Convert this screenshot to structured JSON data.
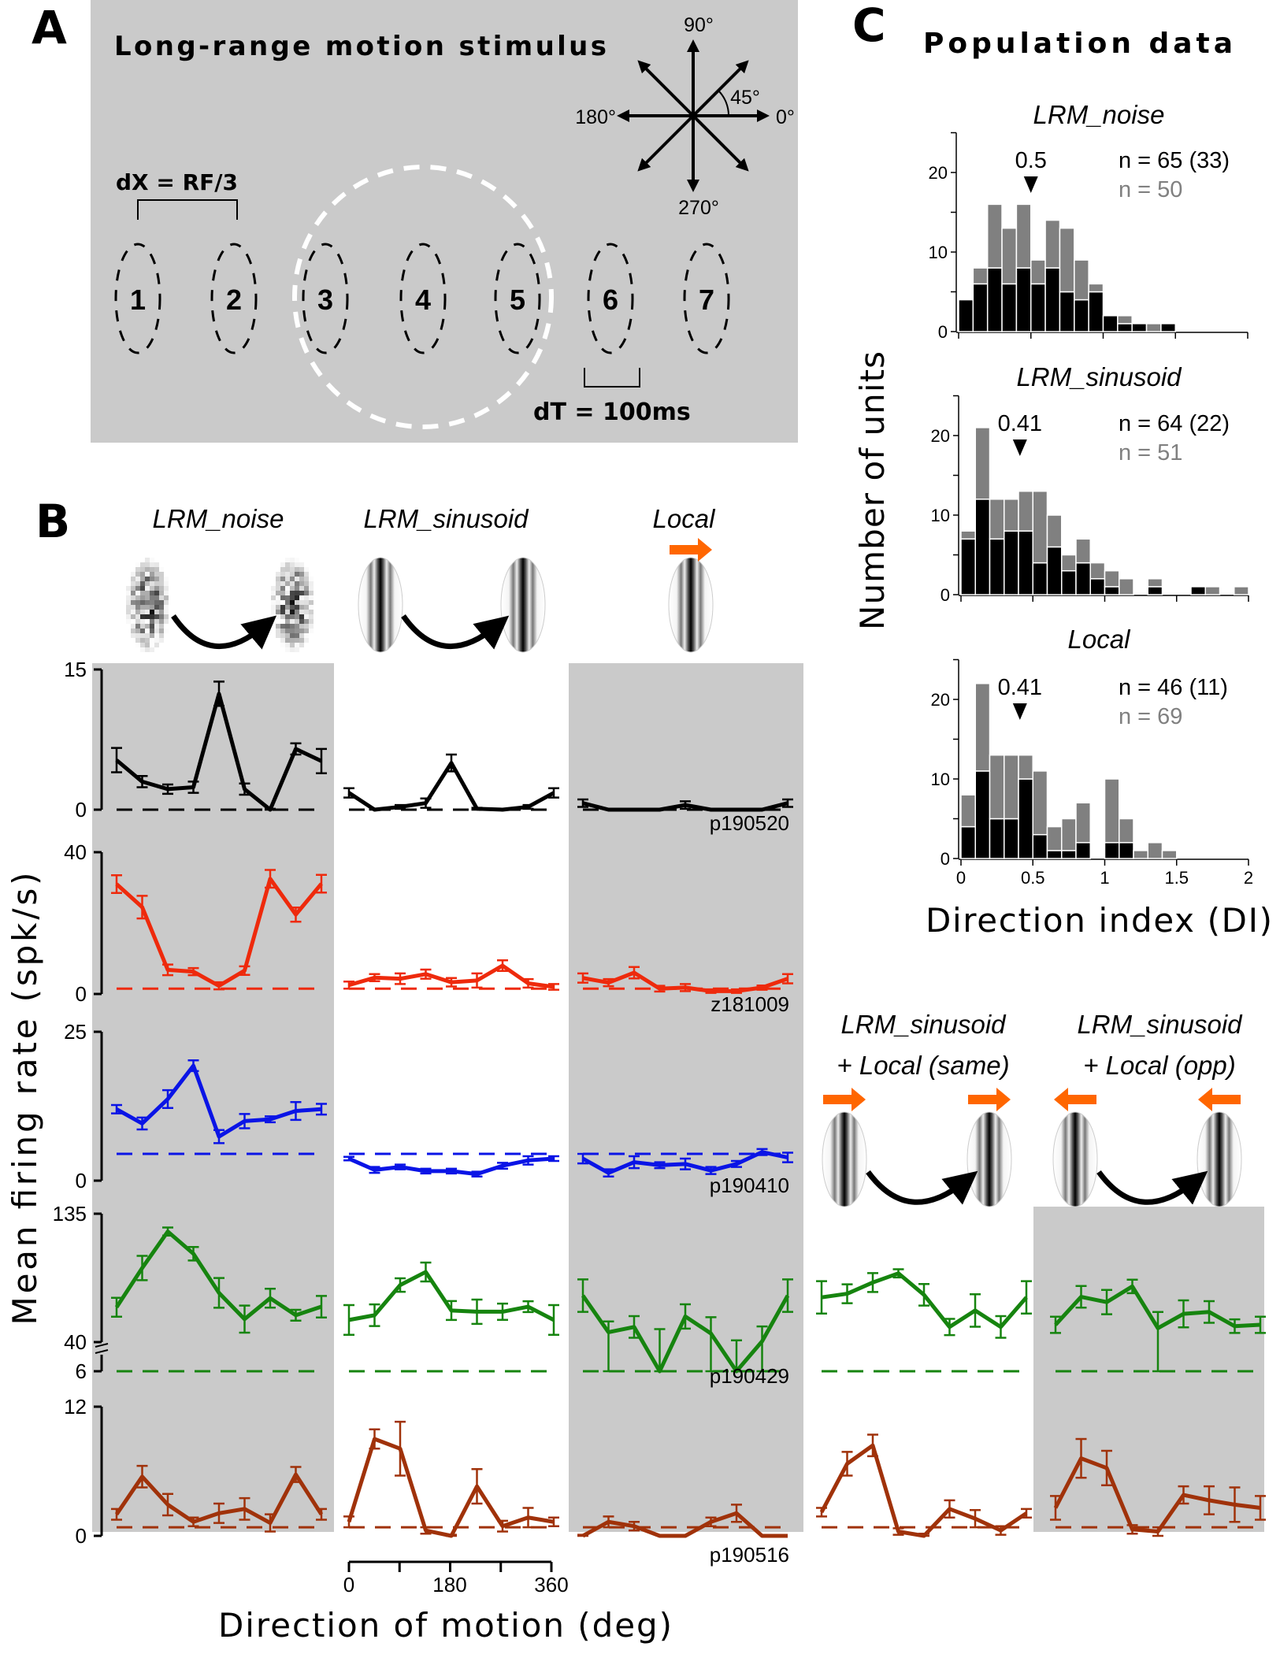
{
  "panel_labels": {
    "a": "A",
    "b": "B",
    "c": "C"
  },
  "panel_a": {
    "title": "Long-range motion stimulus",
    "angles": {
      "up": "90°",
      "diag": "45°",
      "left": "180°",
      "right": "0°",
      "down": "270°"
    },
    "aperture_numbers": [
      "1",
      "2",
      "3",
      "4",
      "5",
      "6",
      "7"
    ],
    "dx_label": "dX = RF/3",
    "dt_label": "dT = 100ms"
  },
  "colors": {
    "panel_bg": "#cacaca",
    "local_arrow": "#ff6600",
    "hist_black": "#000000",
    "hist_gray": "#808080"
  },
  "chart_data": [
    {
      "type": "line",
      "panel": "B",
      "xlabel": "Direction of motion (deg)",
      "ylabel": "Mean firing rate (spk/s)",
      "x": [
        0,
        45,
        90,
        135,
        180,
        225,
        270,
        315,
        360
      ],
      "x_tick_labels": [
        "0",
        "180",
        "360"
      ],
      "xlim": [
        0,
        360
      ],
      "column_titles": [
        [
          "LRM_noise"
        ],
        [
          "LRM_sinusoid"
        ],
        [
          "Local"
        ],
        [
          "LRM_sinusoid",
          "+ Local (same)"
        ],
        [
          "LRM_sinusoid",
          "+ Local (opp)"
        ]
      ],
      "shaded_columns": [
        0,
        2,
        4
      ],
      "rows": [
        {
          "cell": "p190520",
          "color": "#000000",
          "ylim": [
            0,
            15
          ],
          "y_tick_labels": [
            "15",
            "0"
          ],
          "baseline": 0,
          "series": [
            {
              "column": 0,
              "values": [
                5.3,
                3.0,
                2.2,
                2.4,
                12.4,
                2.2,
                0,
                6.5,
                5.2
              ],
              "errors": [
                1.3,
                0.6,
                0.5,
                0.6,
                1.3,
                0.6,
                0.1,
                0.6,
                1.3
              ]
            },
            {
              "column": 1,
              "values": [
                1.8,
                0,
                0.3,
                0.7,
                5.0,
                0.1,
                0,
                0.3,
                1.8
              ],
              "errors": [
                0.5,
                0.1,
                0.2,
                0.5,
                0.9,
                0.1,
                0.1,
                0.2,
                0.5
              ]
            },
            {
              "column": 2,
              "values": [
                0.7,
                0,
                0,
                0,
                0.5,
                0,
                0,
                0,
                0.7
              ],
              "errors": [
                0.4,
                0,
                0,
                0,
                0.4,
                0,
                0,
                0,
                0.4
              ]
            }
          ]
        },
        {
          "cell": "z181009",
          "color": "#ee2a0c",
          "ylim": [
            0,
            40
          ],
          "y_tick_labels": [
            "40",
            "0"
          ],
          "baseline": 1.5,
          "series": [
            {
              "column": 0,
              "values": [
                31.0,
                24.5,
                6.8,
                6.3,
                2.3,
                6.6,
                32.5,
                22.4,
                31.1
              ],
              "errors": [
                2.5,
                3.2,
                1.5,
                1.0,
                1.0,
                1.2,
                2.5,
                2.0,
                2.5
              ]
            },
            {
              "column": 1,
              "values": [
                2.5,
                4.6,
                4.3,
                5.6,
                3.3,
                3.8,
                8.0,
                3.0,
                2.0
              ],
              "errors": [
                1.0,
                1.0,
                1.5,
                1.3,
                1.2,
                2.0,
                1.5,
                1.2,
                0.8
              ]
            },
            {
              "column": 2,
              "values": [
                4.5,
                3.2,
                6.0,
                1.5,
                1.8,
                0.8,
                0.8,
                1.8,
                4.3
              ],
              "errors": [
                1.3,
                1.0,
                1.6,
                0.8,
                1.0,
                0.5,
                0.5,
                0.6,
                1.3
              ]
            }
          ]
        },
        {
          "cell": "p190410",
          "color": "#0a14e6",
          "ylim": [
            0,
            25
          ],
          "y_tick_labels": [
            "25",
            "0"
          ],
          "baseline": 4.5,
          "series": [
            {
              "column": 0,
              "values": [
                12.0,
                9.6,
                13.7,
                19.3,
                7.4,
                10.0,
                10.3,
                11.7,
                12.0
              ],
              "errors": [
                0.7,
                1.0,
                1.5,
                0.9,
                1.1,
                1.2,
                0.5,
                1.5,
                0.9
              ]
            },
            {
              "column": 1,
              "values": [
                3.7,
                1.8,
                2.3,
                1.6,
                1.6,
                1.1,
                2.5,
                3.4,
                3.7
              ],
              "errors": [
                0.3,
                0.5,
                0.4,
                0.4,
                0.4,
                0.4,
                0.5,
                0.7,
                0.4
              ]
            },
            {
              "column": 2,
              "values": [
                3.7,
                1.3,
                3.1,
                2.6,
                2.8,
                1.7,
                2.8,
                4.8,
                3.9
              ],
              "errors": [
                0.8,
                0.6,
                1.0,
                0.5,
                0.9,
                0.6,
                0.5,
                0.5,
                0.8
              ]
            }
          ]
        },
        {
          "cell": "p190429",
          "color": "#16840f",
          "ylim": [
            40,
            135
          ],
          "axis_break_value": 6,
          "y_tick_labels": [
            "135",
            "40",
            "6"
          ],
          "baseline": 6,
          "series": [
            {
              "column": 0,
              "values": [
                65.8,
                94.8,
                121.8,
                105.4,
                76.4,
                57.0,
                72.5,
                59.9,
                66.2
              ],
              "errors": [
                7,
                9,
                3,
                5,
                11,
                10,
                7,
                4,
                8
              ]
            },
            {
              "column": 1,
              "values": [
                56.4,
                59.9,
                82.2,
                91.9,
                63.4,
                62.5,
                62.5,
                66.2,
                56.4
              ],
              "errors": [
                11,
                8,
                5,
                7,
                7,
                9,
                6,
                4,
                11
              ]
            },
            {
              "column": 2,
              "values": [
                74.4,
                47.3,
                51.2,
                39.6,
                59.0,
                46.4,
                36.3,
                40.6,
                74.4
              ],
              "errors": [
                12,
                8,
                8,
                10,
                9,
                12,
                5,
                11,
                12
              ]
            },
            {
              "column": 3,
              "values": [
                73.1,
                75.8,
                84.1,
                90.9,
                75.0,
                51.2,
                63.4,
                51.2,
                73.1
              ],
              "errors": [
                12,
                7,
                7,
                3,
                8,
                6,
                12,
                8,
                12
              ]
            },
            {
              "column": 4,
              "values": [
                52.8,
                73.5,
                69.6,
                81.2,
                50.3,
                60.9,
                62.3,
                51.8,
                52.8
              ],
              "errors": [
                6,
                8,
                9,
                5,
                12,
                10,
                8,
                5,
                6
              ]
            }
          ]
        },
        {
          "cell": "p190516",
          "color": "#a0320a",
          "ylim": [
            0,
            12
          ],
          "y_tick_labels": [
            "12",
            "0"
          ],
          "baseline": 0.8,
          "series": [
            {
              "column": 0,
              "values": [
                2.0,
                5.5,
                2.9,
                1.3,
                2.1,
                2.5,
                1.2,
                5.7,
                2.0
              ],
              "errors": [
                0.5,
                1.0,
                1.0,
                0.4,
                0.9,
                1.0,
                0.8,
                0.7,
                0.5
              ]
            },
            {
              "column": 1,
              "values": [
                1.3,
                9.0,
                8.1,
                0.5,
                0,
                4.6,
                0.9,
                1.7,
                1.3
              ],
              "errors": [
                0.5,
                0.9,
                2.5,
                0.3,
                0.1,
                1.6,
                0.5,
                0.9,
                0.4
              ]
            },
            {
              "column": 2,
              "values": [
                0,
                1.3,
                0.9,
                0,
                0,
                1.3,
                2.1,
                0,
                0
              ],
              "errors": [
                0.1,
                0.5,
                0.4,
                0,
                0,
                0.4,
                0.8,
                0,
                0
              ]
            },
            {
              "column": 3,
              "values": [
                2.2,
                6.7,
                8.4,
                0.4,
                0,
                2.5,
                1.6,
                0.5,
                2.1
              ],
              "errors": [
                0.4,
                1.1,
                1.0,
                0.3,
                0.2,
                0.8,
                0.8,
                0.4,
                0.4
              ]
            },
            {
              "column": 4,
              "values": [
                2.6,
                7.2,
                6.3,
                0.6,
                0.4,
                3.8,
                3.3,
                2.9,
                2.6
              ],
              "errors": [
                1.1,
                1.8,
                1.6,
                0.4,
                0.4,
                0.8,
                1.3,
                1.6,
                1.1
              ]
            }
          ]
        }
      ]
    },
    {
      "type": "bar",
      "stacked": true,
      "panel": "C",
      "title": "Population data",
      "xlabel": "Direction index (DI)",
      "ylabel": "Number of units",
      "xlim": [
        0,
        2
      ],
      "ylim": [
        0,
        25
      ],
      "bin_width": 0.1,
      "x_tick_labels": [
        "0",
        "0.5",
        "1",
        "1.5",
        "2"
      ],
      "y_tick_labels": [
        "0",
        "10",
        "20"
      ],
      "histograms": [
        {
          "title": "LRM_noise",
          "median": 0.5,
          "median_label": "0.5",
          "n_black_label": "n = 65 (33)",
          "n_gray_label": "n = 50",
          "black": [
            4,
            6,
            8,
            6,
            8,
            6,
            8,
            5,
            4,
            5,
            2,
            1,
            1,
            0,
            1,
            0,
            0,
            0,
            0,
            0
          ],
          "gray": [
            0,
            2,
            8,
            7,
            8,
            3,
            6,
            8,
            5,
            1,
            0,
            1,
            0,
            1,
            0,
            0,
            0,
            0,
            0,
            0
          ]
        },
        {
          "title": "LRM_sinusoid",
          "median": 0.41,
          "median_label": "0.41",
          "n_black_label": "n = 64 (22)",
          "n_gray_label": "n = 51",
          "black": [
            7,
            12,
            7,
            8,
            8,
            4,
            6,
            3,
            4,
            2,
            1,
            0,
            0,
            1,
            0,
            0,
            1,
            0,
            0,
            0
          ],
          "gray": [
            1,
            9,
            5,
            4,
            5,
            9,
            4,
            2,
            3,
            2,
            2,
            2,
            0,
            1,
            0,
            0,
            0,
            1,
            0,
            1
          ]
        },
        {
          "title": "Local",
          "median": 0.41,
          "median_label": "0.41",
          "n_black_label": "n = 46 (11)",
          "n_gray_label": "n = 69",
          "black": [
            4,
            11,
            5,
            5,
            10,
            3,
            1,
            1,
            2,
            0,
            2,
            2,
            0,
            0,
            0,
            0,
            0,
            0,
            0,
            0
          ],
          "gray": [
            4,
            11,
            8,
            8,
            3,
            8,
            3,
            4,
            5,
            0,
            8,
            3,
            1,
            2,
            1,
            0,
            0,
            0,
            0,
            0
          ]
        }
      ]
    }
  ]
}
